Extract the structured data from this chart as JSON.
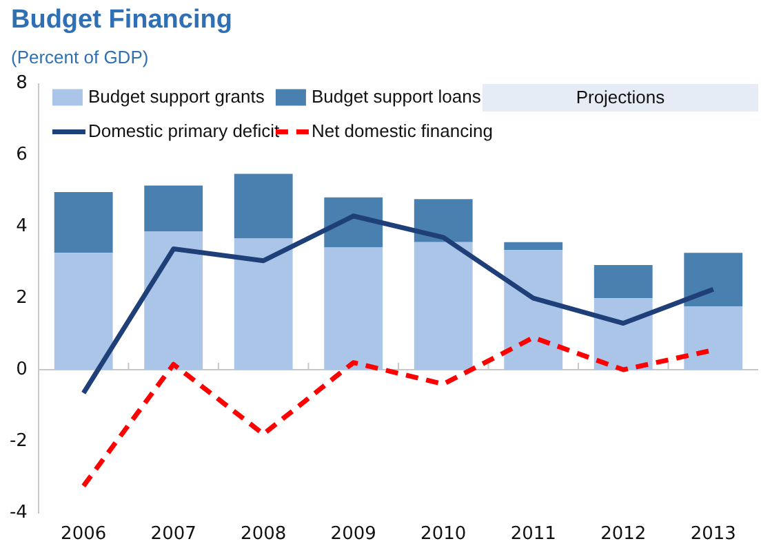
{
  "chart_data": {
    "type": "bar",
    "title": "Budget Financing",
    "subtitle": "(Percent of GDP)",
    "categories": [
      "2006",
      "2007",
      "2008",
      "2009",
      "2010",
      "2011",
      "2012",
      "2013"
    ],
    "stacked": true,
    "series": [
      {
        "name": "Budget support grants",
        "color": "#abc5e9",
        "values": [
          3.27,
          3.87,
          3.68,
          3.42,
          3.57,
          3.35,
          2.0,
          1.77
        ]
      },
      {
        "name": "Budget support loans",
        "color": "#4a80b0",
        "values": [
          1.7,
          1.28,
          1.8,
          1.4,
          1.2,
          0.22,
          0.93,
          1.5
        ]
      },
      {
        "name": "Domestic primary deficit",
        "type": "line",
        "color": "#1f3f78",
        "line_style": "solid",
        "values": [
          -0.65,
          3.38,
          3.05,
          4.3,
          3.7,
          2.0,
          1.3,
          2.25
        ]
      },
      {
        "name": "Net domestic financing",
        "type": "line",
        "color": "#ff0000",
        "line_style": "dashed",
        "values": [
          -3.25,
          0.15,
          -1.8,
          0.2,
          -0.4,
          0.9,
          0.0,
          0.55
        ]
      }
    ],
    "ylim": [
      -4,
      8
    ],
    "yticks": [
      -4,
      -2,
      0,
      2,
      4,
      6,
      8
    ],
    "ref_lines": [
      {
        "axis": "y",
        "value": 0,
        "color": "#c8c8c8"
      }
    ],
    "annotations": [
      "Projections"
    ],
    "grid": false,
    "legend": "top",
    "marker": "none"
  }
}
